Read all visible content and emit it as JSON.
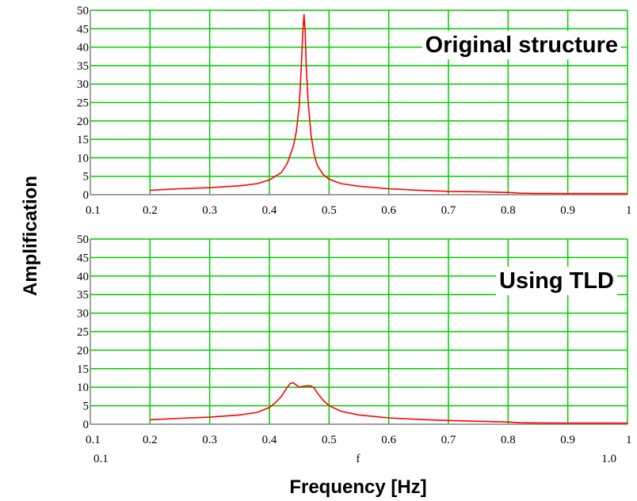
{
  "figure": {
    "ylabel": "Amplification",
    "xlabel": "Frequency [Hz]",
    "x_var": "f",
    "x_range_left": "0.1",
    "x_range_right": "1.0"
  },
  "colors": {
    "grid": "#00cc00",
    "curve": "#ff0000",
    "axis": "#808080",
    "text": "#000000"
  },
  "chart_data": [
    {
      "type": "line",
      "label": "Original structure",
      "xlim": [
        0.1,
        1.0
      ],
      "ylim": [
        0,
        50
      ],
      "x_ticks": [
        "0.1",
        "0.2",
        "0.3",
        "0.4",
        "0.5",
        "0.6",
        "0.7",
        "0.8",
        "0.9",
        "1"
      ],
      "y_ticks": [
        "0",
        "5",
        "10",
        "15",
        "20",
        "25",
        "30",
        "35",
        "40",
        "45",
        "50"
      ],
      "grid": true,
      "series": [
        {
          "x": [
            0.2,
            0.25,
            0.3,
            0.35,
            0.38,
            0.4,
            0.42,
            0.43,
            0.44,
            0.445,
            0.45,
            0.453,
            0.456,
            0.458,
            0.46,
            0.462,
            0.465,
            0.47,
            0.475,
            0.48,
            0.49,
            0.5,
            0.52,
            0.55,
            0.6,
            0.65,
            0.7,
            0.75,
            0.8,
            0.82,
            0.85,
            0.9,
            0.95,
            1.0
          ],
          "y": [
            1.2,
            1.6,
            1.9,
            2.4,
            3.0,
            4.0,
            6.0,
            8.5,
            13,
            17,
            24,
            33,
            44,
            49,
            44,
            34,
            25,
            16,
            11,
            8.0,
            5.5,
            4.2,
            3.0,
            2.3,
            1.6,
            1.2,
            0.9,
            0.8,
            0.6,
            0.4,
            0.35,
            0.3,
            0.3,
            0.3
          ]
        }
      ]
    },
    {
      "type": "line",
      "label": "Using TLD",
      "xlim": [
        0.1,
        1.0
      ],
      "ylim": [
        0,
        50
      ],
      "x_ticks": [
        "0.1",
        "0.2",
        "0.3",
        "0.4",
        "0.5",
        "0.6",
        "0.7",
        "0.8",
        "0.9",
        "1"
      ],
      "y_ticks": [
        "0",
        "5",
        "10",
        "15",
        "20",
        "25",
        "30",
        "35",
        "40",
        "45",
        "50"
      ],
      "grid": true,
      "series": [
        {
          "x": [
            0.2,
            0.25,
            0.3,
            0.35,
            0.38,
            0.4,
            0.41,
            0.42,
            0.43,
            0.435,
            0.44,
            0.445,
            0.45,
            0.455,
            0.46,
            0.465,
            0.47,
            0.475,
            0.48,
            0.49,
            0.5,
            0.52,
            0.55,
            0.6,
            0.65,
            0.7,
            0.75,
            0.8,
            0.82,
            0.85,
            0.9,
            0.95,
            1.0
          ],
          "y": [
            1.2,
            1.6,
            1.9,
            2.5,
            3.2,
            4.5,
            5.8,
            7.5,
            10.0,
            11.0,
            11.2,
            10.6,
            10.0,
            10.2,
            10.3,
            10.4,
            10.3,
            9.8,
            8.5,
            6.5,
            5.0,
            3.5,
            2.5,
            1.7,
            1.3,
            1.0,
            0.8,
            0.6,
            0.4,
            0.35,
            0.3,
            0.3,
            0.3
          ]
        }
      ]
    }
  ]
}
